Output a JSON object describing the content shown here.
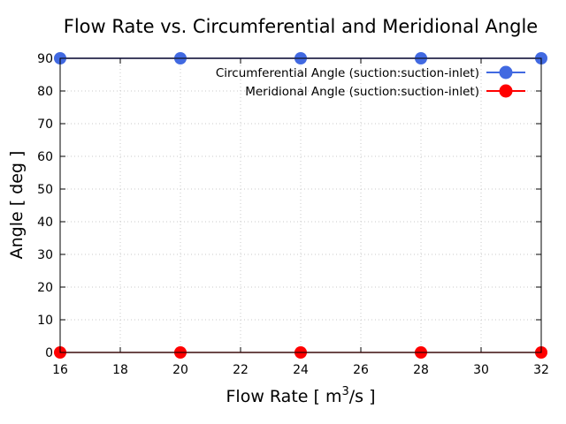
{
  "chart_data": {
    "type": "line",
    "title": "Flow Rate vs. Circumferential and Meridional Angle",
    "xlabel_main": "Flow Rate [ m",
    "xlabel_sup": "3",
    "xlabel_tail": "/s ]",
    "ylabel": "Angle [ deg ]",
    "x": [
      16,
      20,
      24,
      28,
      32
    ],
    "xlim": [
      16,
      32
    ],
    "ylim": [
      0,
      90
    ],
    "xticks": [
      16,
      18,
      20,
      22,
      24,
      26,
      28,
      30,
      32
    ],
    "yticks": [
      0,
      10,
      20,
      30,
      40,
      50,
      60,
      70,
      80,
      90
    ],
    "grid": true,
    "legend_position": "top-right",
    "series": [
      {
        "name": "Circumferential Angle (suction:suction-inlet)",
        "values": [
          90,
          90,
          90,
          90,
          90
        ],
        "color": "#4169e1",
        "line_color": "#000080"
      },
      {
        "name": "Meridional Angle (suction:suction-inlet)",
        "values": [
          0,
          0,
          0,
          0,
          0
        ],
        "color": "#ff0000",
        "line_color": "#b22222"
      }
    ]
  }
}
